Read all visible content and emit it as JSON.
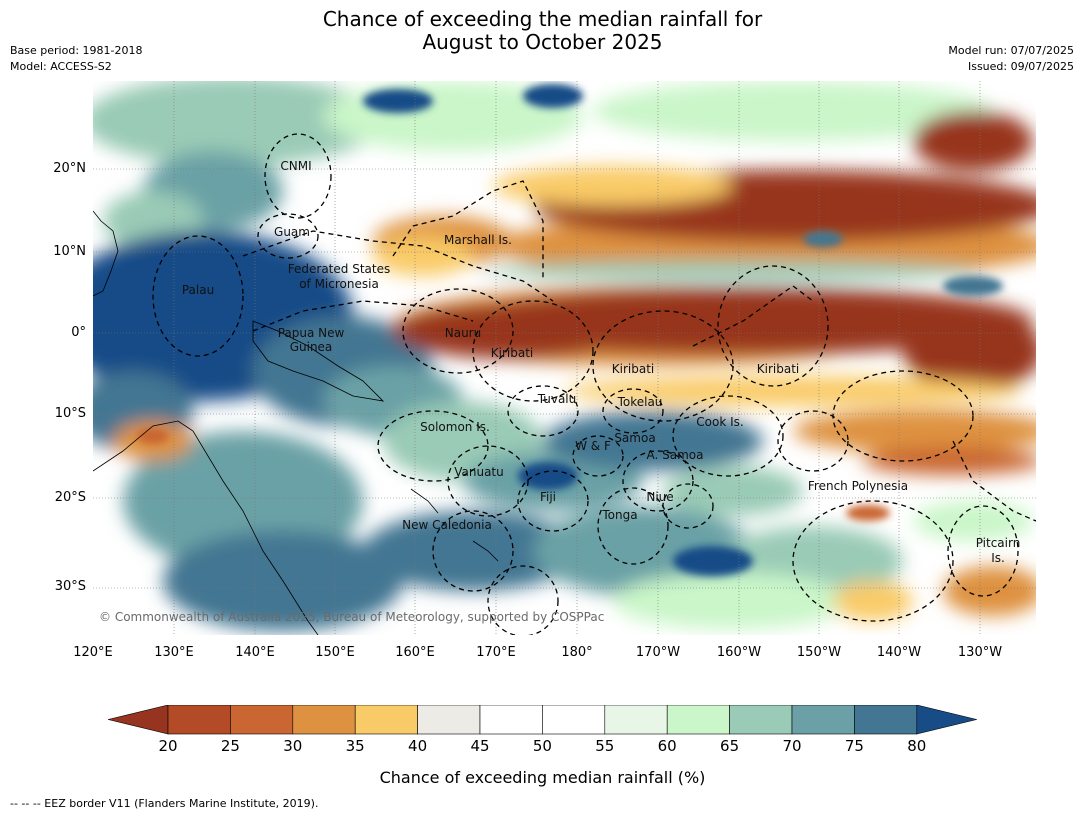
{
  "title_line1": "Chance of exceeding the median rainfall for",
  "title_line2": "August to October 2025",
  "base_period": "Base period: 1981-2018",
  "model": "Model: ACCESS-S2",
  "model_run": "Model run: 07/07/2025",
  "issued": "Issued: 09/07/2025",
  "copyright": "© Commonwealth of Australia 2025, Bureau of Meteorology, supported by COSPPac",
  "footer": "--  --  -- EEZ border V11 (Flanders Marine Institute, 2019).",
  "colorbar": {
    "label": "Chance of exceeding median rainfall (%)",
    "ticks": [
      "20",
      "25",
      "30",
      "35",
      "40",
      "45",
      "50",
      "55",
      "60",
      "65",
      "70",
      "75",
      "80"
    ],
    "colors": [
      "#97341f",
      "#b34b26",
      "#c96632",
      "#de9241",
      "#f9cb68",
      "#edebe6",
      "#ffffff",
      "#ffffff",
      "#e8f6e8",
      "#caf6c9",
      "#9acbb6",
      "#6ba1a6",
      "#437692",
      "#174c87"
    ]
  },
  "axes": {
    "lat_ticks": [
      "20°N",
      "10°N",
      "0°",
      "10°S",
      "20°S",
      "30°S"
    ],
    "lon_ticks": [
      "120°E",
      "130°E",
      "140°E",
      "150°E",
      "160°E",
      "170°E",
      "180°",
      "170°W",
      "160°W",
      "150°W",
      "140°W",
      "130°W"
    ]
  },
  "regions": [
    {
      "name": "CNMI"
    },
    {
      "name": "Guam"
    },
    {
      "name": "Marshall Is."
    },
    {
      "name": "Federated States"
    },
    {
      "name": "of Micronesia"
    },
    {
      "name": "Palau"
    },
    {
      "name": "Papua New"
    },
    {
      "name": "Guinea"
    },
    {
      "name": "Nauru"
    },
    {
      "name": "Kiribati"
    },
    {
      "name": "Kiribati"
    },
    {
      "name": "Kiribati"
    },
    {
      "name": "Tuvalu"
    },
    {
      "name": "Tokelau"
    },
    {
      "name": "Cook Is."
    },
    {
      "name": "Solomon Is."
    },
    {
      "name": "W & F"
    },
    {
      "name": "Samoa"
    },
    {
      "name": "A. Samoa"
    },
    {
      "name": "Vanuatu"
    },
    {
      "name": "Fiji"
    },
    {
      "name": "Niue"
    },
    {
      "name": "Tonga"
    },
    {
      "name": "French Polynesia"
    },
    {
      "name": "New Caledonia"
    },
    {
      "name": "Pitcairn"
    },
    {
      "name": "Is."
    }
  ],
  "colors": {
    "strong_dry": "#97341f",
    "dry": "#de9241",
    "neutral": "#ffffff",
    "wet": "#caf6c9",
    "strong_wet": "#174c87"
  }
}
